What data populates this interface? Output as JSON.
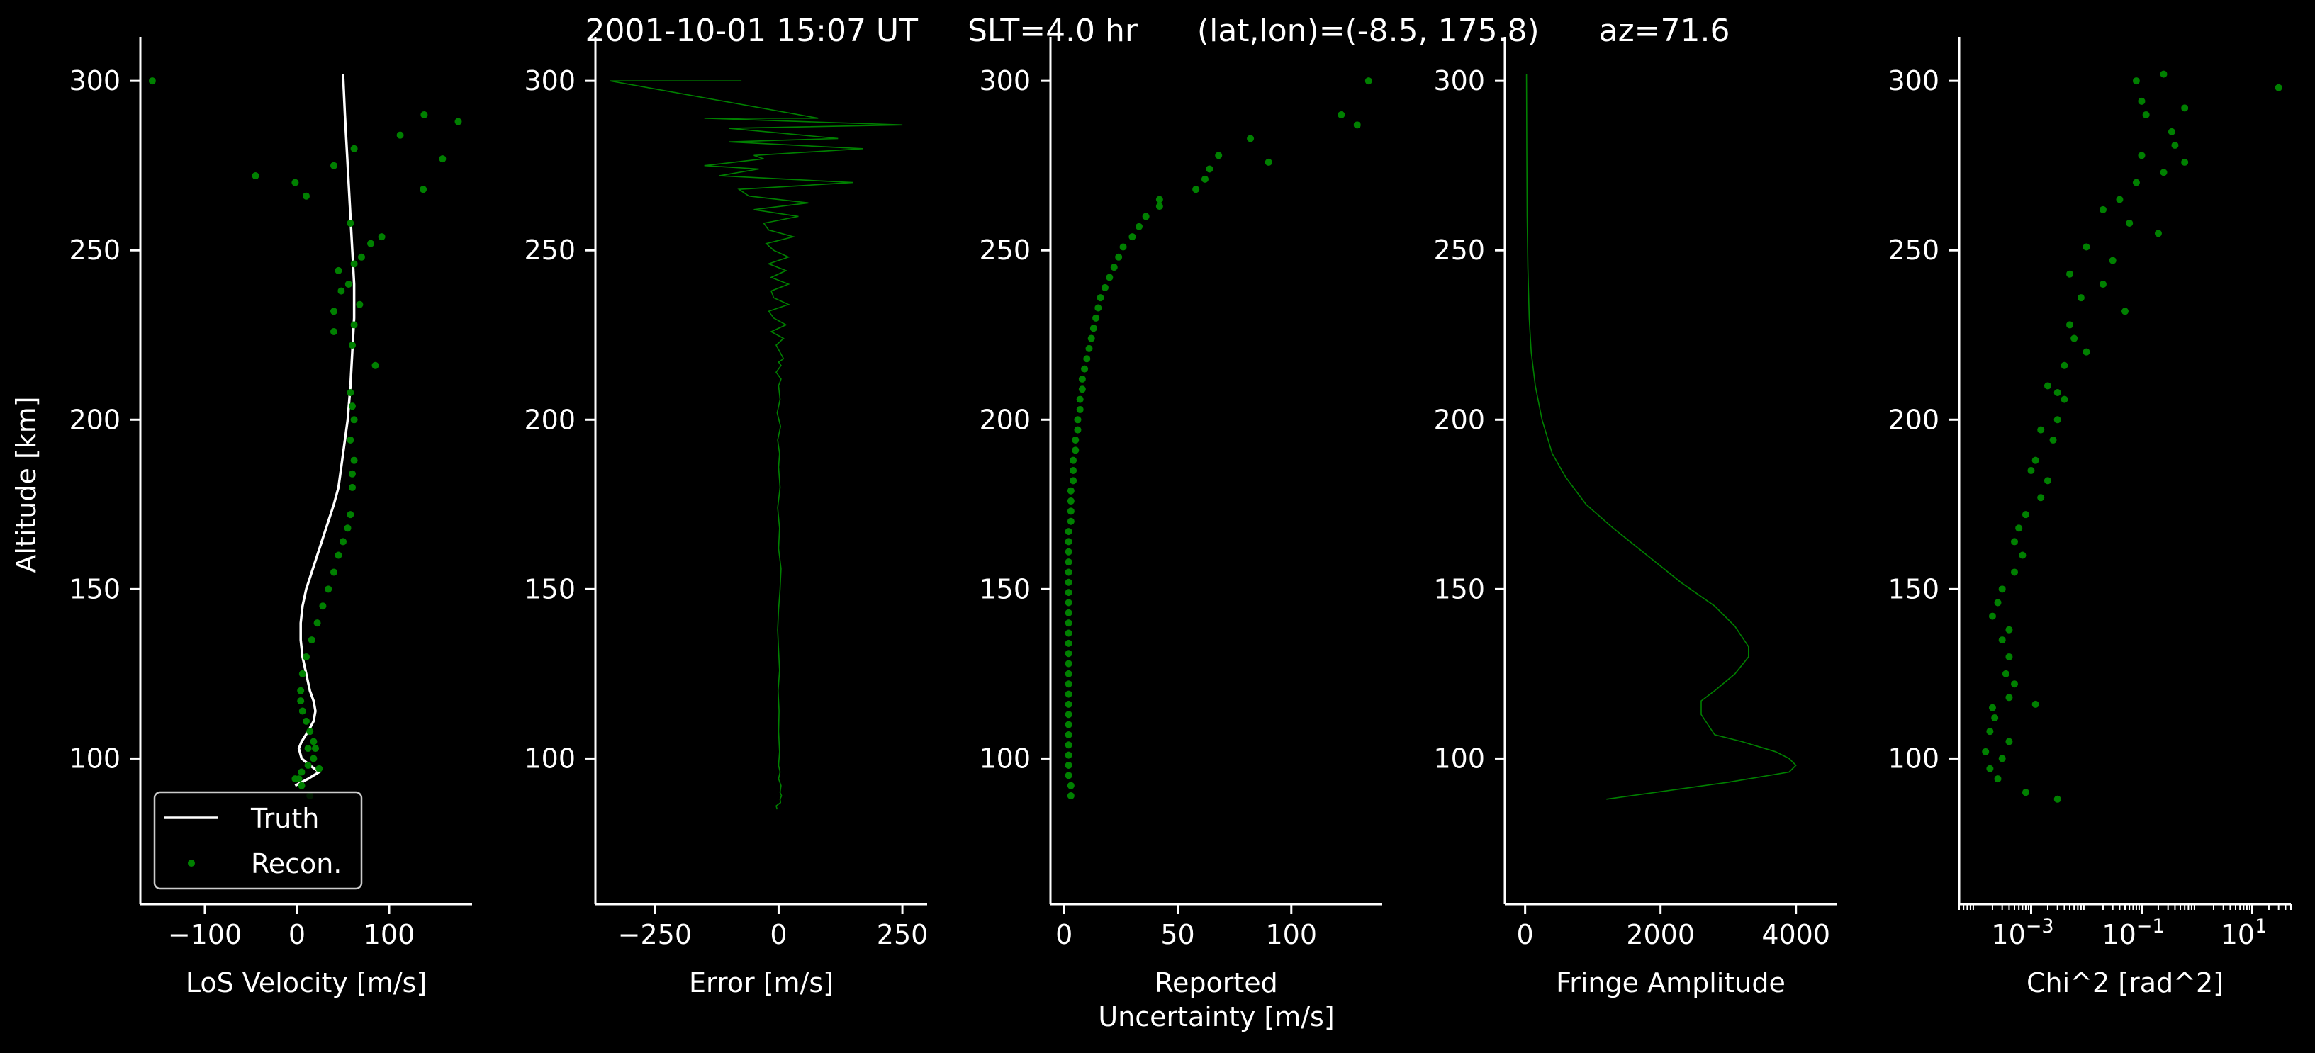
{
  "title": "2001-10-01 15:07 UT     SLT=4.0 hr      (lat,lon)=(-8.5, 175.8)      az=71.6",
  "colors": {
    "background": "#000000",
    "axes": "#ffffff",
    "recon": "#008000",
    "truth": "#ffffff"
  },
  "chart_data": [
    {
      "type": "line",
      "xlabel": "LoS Velocity [m/s]",
      "ylabel": "Altitude [km]",
      "xlim": [
        -170,
        190
      ],
      "ylim": [
        57,
        313
      ],
      "xticks": [
        -100,
        0,
        100
      ],
      "xtick_labels": [
        "−100",
        "0",
        "100"
      ],
      "yticks": [
        100,
        150,
        200,
        250,
        300
      ],
      "yscale": "linear",
      "legend": {
        "position": "lower-left",
        "entries": [
          "Truth",
          "Recon."
        ]
      },
      "series": [
        {
          "name": "Truth",
          "style": "line",
          "x": [
            50,
            52,
            54,
            56,
            58,
            60,
            62,
            62,
            60,
            58,
            55,
            50,
            45,
            40,
            34,
            28,
            22,
            16,
            10,
            6,
            4,
            4,
            6,
            10,
            14,
            18,
            20,
            18,
            12,
            5,
            2,
            5,
            14,
            24,
            12,
            -2
          ],
          "y": [
            302,
            290,
            280,
            270,
            260,
            250,
            240,
            230,
            220,
            210,
            200,
            190,
            180,
            175,
            170,
            165,
            160,
            155,
            150,
            145,
            140,
            135,
            130,
            125,
            120,
            117,
            114,
            111,
            108,
            105,
            103,
            100,
            98,
            96,
            94,
            92
          ]
        },
        {
          "name": "Recon.",
          "style": "points",
          "x": [
            -157,
            138,
            175,
            112,
            158,
            -45,
            -2,
            10,
            62,
            40,
            137,
            58,
            92,
            80,
            70,
            62,
            45,
            56,
            48,
            68,
            40,
            62,
            40,
            60,
            85,
            58,
            60,
            62,
            58,
            62,
            60,
            60,
            58,
            55,
            50,
            45,
            40,
            34,
            28,
            22,
            16,
            10,
            6,
            4,
            4,
            6,
            10,
            14,
            18,
            20,
            18,
            12,
            5,
            2,
            5,
            14,
            24,
            12,
            -2
          ],
          "y": [
            300,
            290,
            288,
            284,
            277,
            272,
            270,
            266,
            280,
            275,
            268,
            258,
            254,
            252,
            248,
            246,
            244,
            240,
            238,
            234,
            232,
            228,
            226,
            222,
            216,
            208,
            204,
            200,
            194,
            188,
            184,
            180,
            172,
            168,
            164,
            160,
            155,
            150,
            145,
            140,
            135,
            130,
            125,
            120,
            117,
            114,
            111,
            108,
            105,
            103,
            100,
            98,
            96,
            94,
            92,
            89,
            97,
            103,
            94
          ]
        }
      ]
    },
    {
      "type": "line",
      "xlabel": "Error [m/s]",
      "xlim": [
        -370,
        300
      ],
      "ylim": [
        57,
        313
      ],
      "xticks": [
        -250,
        0,
        250
      ],
      "xtick_labels": [
        "−250",
        "0",
        "250"
      ],
      "yticks": [
        100,
        150,
        200,
        250,
        300
      ],
      "yscale": "linear",
      "series": [
        {
          "style": "line",
          "x": [
            -340,
            -75,
            -340,
            80,
            -150,
            250,
            -100,
            120,
            -100,
            170,
            -50,
            -30,
            -90,
            -150,
            -40,
            -120,
            150,
            -80,
            -60,
            60,
            -50,
            40,
            -30,
            -20,
            30,
            -25,
            -10,
            20,
            -20,
            15,
            -15,
            20,
            -15,
            -10,
            20,
            -20,
            -10,
            15,
            -15,
            10,
            -5,
            10,
            0,
            5,
            -5,
            5,
            0,
            3,
            -3,
            4,
            -2,
            2,
            0,
            3,
            -2,
            2,
            0,
            5,
            3,
            0,
            -2,
            0,
            2,
            -1,
            1,
            0,
            2,
            0,
            3,
            0,
            5,
            3,
            6,
            3,
            4,
            -5,
            -3
          ],
          "y": [
            300,
            300,
            300,
            289,
            289,
            287,
            286,
            283,
            282,
            280,
            278,
            277,
            276,
            275,
            274,
            272,
            270,
            268,
            266,
            264,
            262,
            260,
            258,
            256,
            254,
            252,
            250,
            248,
            246,
            244,
            242,
            240,
            238,
            236,
            234,
            232,
            230,
            228,
            226,
            224,
            222,
            218,
            217,
            216,
            214,
            212,
            210,
            206,
            202,
            198,
            194,
            190,
            186,
            180,
            174,
            168,
            162,
            156,
            150,
            144,
            138,
            132,
            126,
            120,
            114,
            108,
            102,
            98,
            96,
            94,
            92,
            90,
            89,
            88,
            87,
            86,
            85
          ]
        }
      ]
    },
    {
      "type": "scatter",
      "xlabel": "Reported Uncertainty [m/s]",
      "xlabel_lines": [
        "Reported",
        "Uncertainty [m/s]"
      ],
      "xlim": [
        -6,
        140
      ],
      "ylim": [
        57,
        313
      ],
      "xticks": [
        0,
        50,
        100
      ],
      "xtick_labels": [
        "0",
        "50",
        "100"
      ],
      "yticks": [
        100,
        150,
        200,
        250,
        300
      ],
      "yscale": "linear",
      "series": [
        {
          "style": "points",
          "x": [
            134,
            122,
            129,
            82,
            90,
            68,
            64,
            62,
            58,
            42,
            42,
            36,
            33,
            30,
            26,
            24,
            22,
            20,
            18,
            16,
            15,
            14,
            13,
            12,
            11,
            10,
            9,
            8,
            8,
            7,
            7,
            6,
            6,
            5,
            5,
            4,
            4,
            4,
            3,
            3,
            3,
            3,
            2,
            2,
            2,
            2,
            2,
            2,
            2,
            2,
            2,
            2,
            2,
            2,
            2,
            2,
            2,
            2,
            2,
            2,
            2,
            2,
            2,
            2,
            2,
            2,
            2,
            3,
            3
          ],
          "y": [
            300,
            290,
            287,
            283,
            276,
            278,
            274,
            271,
            268,
            265,
            263,
            260,
            257,
            254,
            251,
            248,
            245,
            242,
            239,
            236,
            233,
            230,
            227,
            224,
            221,
            218,
            215,
            212,
            209,
            206,
            203,
            200,
            197,
            194,
            191,
            188,
            185,
            182,
            179,
            176,
            173,
            170,
            167,
            164,
            161,
            158,
            155,
            152,
            149,
            146,
            143,
            140,
            137,
            134,
            131,
            128,
            125,
            122,
            119,
            116,
            113,
            110,
            107,
            104,
            101,
            98,
            95,
            92,
            89
          ]
        }
      ]
    },
    {
      "type": "line",
      "xlabel": "Fringe Amplitude",
      "xlim": [
        -300,
        4600
      ],
      "ylim": [
        57,
        313
      ],
      "xticks": [
        0,
        2000,
        4000
      ],
      "xtick_labels": [
        "0",
        "2000",
        "4000"
      ],
      "yticks": [
        100,
        150,
        200,
        250,
        300
      ],
      "yscale": "linear",
      "series": [
        {
          "style": "line",
          "x": [
            20,
            25,
            30,
            40,
            60,
            90,
            150,
            250,
            400,
            600,
            900,
            1300,
            1800,
            2300,
            2800,
            3100,
            3300,
            3300,
            3100,
            2800,
            2600,
            2600,
            2800,
            3200,
            3700,
            3900,
            4000,
            3900,
            3000,
            1200
          ],
          "y": [
            302,
            280,
            260,
            245,
            230,
            220,
            210,
            200,
            190,
            183,
            175,
            168,
            160,
            152,
            145,
            139,
            133,
            130,
            125,
            120,
            117,
            113,
            107,
            105,
            102,
            100,
            98,
            96,
            93,
            88
          ]
        }
      ]
    },
    {
      "type": "scatter",
      "xlabel": "Chi^2 [rad^2]",
      "xlim": [
        5e-05,
        50
      ],
      "ylim": [
        57,
        313
      ],
      "xticks": [
        0.001,
        0.1,
        10
      ],
      "xtick_labels": [
        "10",
        "10",
        "10"
      ],
      "xtick_exponents": [
        "−3",
        "−1",
        "1"
      ],
      "yticks": [
        100,
        150,
        200,
        250,
        300
      ],
      "yscale": "linear",
      "xscale": "log",
      "series": [
        {
          "style": "points",
          "x": [
            0.08,
            0.25,
            30,
            0.6,
            0.1,
            0.35,
            0.12,
            0.4,
            0.6,
            0.1,
            0.08,
            0.25,
            0.04,
            0.02,
            0.06,
            0.2,
            0.01,
            0.03,
            0.005,
            0.02,
            0.008,
            0.05,
            0.005,
            0.006,
            0.01,
            0.004,
            0.002,
            0.003,
            0.004,
            0.003,
            0.0015,
            0.0025,
            0.0012,
            0.001,
            0.002,
            0.0015,
            0.0008,
            0.0006,
            0.0005,
            0.0007,
            0.0005,
            0.0003,
            0.00025,
            0.0002,
            0.0004,
            0.0003,
            0.0004,
            0.00035,
            0.0005,
            0.0004,
            0.0002,
            0.00022,
            0.00018,
            0.00015,
            0.0012,
            0.0008,
            0.003,
            0.0004,
            0.00018,
            0.0003,
            0.00025
          ],
          "y": [
            300,
            302,
            298,
            292,
            294,
            285,
            290,
            281,
            276,
            278,
            270,
            273,
            265,
            262,
            258,
            255,
            251,
            247,
            243,
            240,
            236,
            232,
            228,
            224,
            220,
            216,
            210,
            208,
            206,
            200,
            197,
            194,
            188,
            185,
            182,
            177,
            172,
            168,
            164,
            160,
            155,
            150,
            146,
            142,
            138,
            135,
            130,
            125,
            122,
            118,
            115,
            112,
            108,
            102,
            116,
            90,
            88,
            105,
            97,
            100,
            94
          ]
        }
      ]
    }
  ]
}
